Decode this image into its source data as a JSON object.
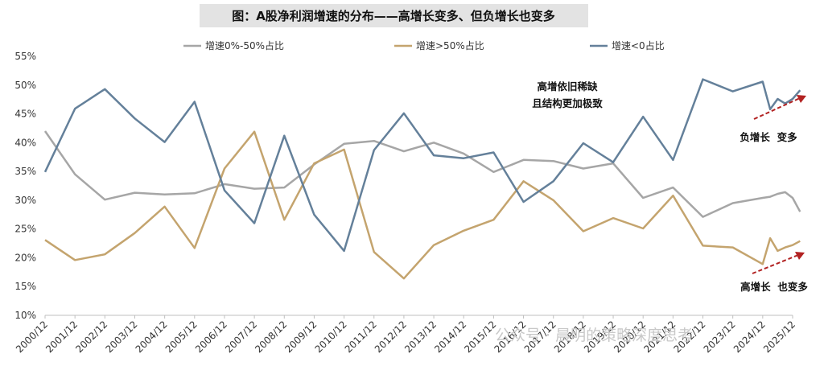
{
  "chart_data": {
    "type": "line",
    "title": "图：A股净利润增速的分布——高增长变多、但负增长也变多",
    "categories": [
      "2000/12",
      "2001/12",
      "2002/12",
      "2003/12",
      "2004/12",
      "2005/12",
      "2006/12",
      "2007/12",
      "2008/12",
      "2009/12",
      "2010/12",
      "2011/12",
      "2012/12",
      "2013/12",
      "2014/12",
      "2015/12",
      "2016/12",
      "2017/12",
      "2018/12",
      "2019/12",
      "2020/12",
      "2021/12",
      "2022/12",
      "2023/12",
      "2024/12",
      "2025/12"
    ],
    "ylim": [
      0.1,
      0.55
    ],
    "yticks": [
      "10%",
      "15%",
      "20%",
      "25%",
      "30%",
      "35%",
      "40%",
      "45%",
      "50%",
      "55%"
    ],
    "legend_position": "top",
    "grid": false,
    "series": [
      {
        "name": "增速0%-50%占比",
        "color": "#a6a6a6",
        "points": [
          [
            0,
            0.42
          ],
          [
            1,
            0.345
          ],
          [
            2,
            0.301
          ],
          [
            3,
            0.313
          ],
          [
            4,
            0.31
          ],
          [
            5,
            0.312
          ],
          [
            6,
            0.328
          ],
          [
            7,
            0.32
          ],
          [
            8,
            0.322
          ],
          [
            9,
            0.362
          ],
          [
            10,
            0.398
          ],
          [
            11,
            0.403
          ],
          [
            12,
            0.385
          ],
          [
            13,
            0.4
          ],
          [
            14,
            0.381
          ],
          [
            15,
            0.349
          ],
          [
            16,
            0.37
          ],
          [
            17,
            0.368
          ],
          [
            18,
            0.355
          ],
          [
            19,
            0.364
          ],
          [
            20,
            0.304
          ],
          [
            21,
            0.322
          ],
          [
            22,
            0.271
          ],
          [
            23,
            0.295
          ],
          [
            24,
            0.304
          ],
          [
            24.25,
            0.306
          ],
          [
            24.5,
            0.311
          ],
          [
            24.75,
            0.314
          ],
          [
            25,
            0.304
          ],
          [
            25.25,
            0.28
          ]
        ]
      },
      {
        "name": "增速>50%占比",
        "color": "#c4a46e",
        "points": [
          [
            0,
            0.231
          ],
          [
            1,
            0.196
          ],
          [
            2,
            0.206
          ],
          [
            3,
            0.243
          ],
          [
            4,
            0.289
          ],
          [
            5,
            0.217
          ],
          [
            6,
            0.355
          ],
          [
            7,
            0.419
          ],
          [
            8,
            0.266
          ],
          [
            9,
            0.364
          ],
          [
            10,
            0.388
          ],
          [
            11,
            0.21
          ],
          [
            12,
            0.164
          ],
          [
            13,
            0.222
          ],
          [
            14,
            0.247
          ],
          [
            15,
            0.266
          ],
          [
            16,
            0.333
          ],
          [
            17,
            0.3
          ],
          [
            18,
            0.246
          ],
          [
            19,
            0.269
          ],
          [
            20,
            0.251
          ],
          [
            21,
            0.308
          ],
          [
            22,
            0.221
          ],
          [
            23,
            0.218
          ],
          [
            24,
            0.189
          ],
          [
            24.25,
            0.234
          ],
          [
            24.5,
            0.212
          ],
          [
            24.75,
            0.218
          ],
          [
            25,
            0.222
          ],
          [
            25.25,
            0.229
          ]
        ]
      },
      {
        "name": "增速<0占比",
        "color": "#64809a",
        "points": [
          [
            0,
            0.349
          ],
          [
            1,
            0.459
          ],
          [
            2,
            0.493
          ],
          [
            3,
            0.442
          ],
          [
            4,
            0.401
          ],
          [
            5,
            0.471
          ],
          [
            6,
            0.317
          ],
          [
            7,
            0.26
          ],
          [
            8,
            0.412
          ],
          [
            9,
            0.275
          ],
          [
            10,
            0.212
          ],
          [
            11,
            0.387
          ],
          [
            12,
            0.451
          ],
          [
            13,
            0.378
          ],
          [
            14,
            0.373
          ],
          [
            15,
            0.383
          ],
          [
            16,
            0.297
          ],
          [
            17,
            0.333
          ],
          [
            18,
            0.399
          ],
          [
            19,
            0.366
          ],
          [
            20,
            0.445
          ],
          [
            21,
            0.37
          ],
          [
            22,
            0.51
          ],
          [
            23,
            0.489
          ],
          [
            24,
            0.506
          ],
          [
            24.25,
            0.458
          ],
          [
            24.5,
            0.476
          ],
          [
            24.75,
            0.468
          ],
          [
            25,
            0.476
          ],
          [
            25.25,
            0.491
          ]
        ]
      }
    ],
    "annotations": [
      {
        "text": "高增依旧稀缺"
      },
      {
        "text": "且结构更加极致"
      },
      {
        "text": "负增长  变多"
      },
      {
        "text": "高增长  也变多"
      }
    ],
    "watermark": "公众号 · 晨明的策略深度思考"
  }
}
